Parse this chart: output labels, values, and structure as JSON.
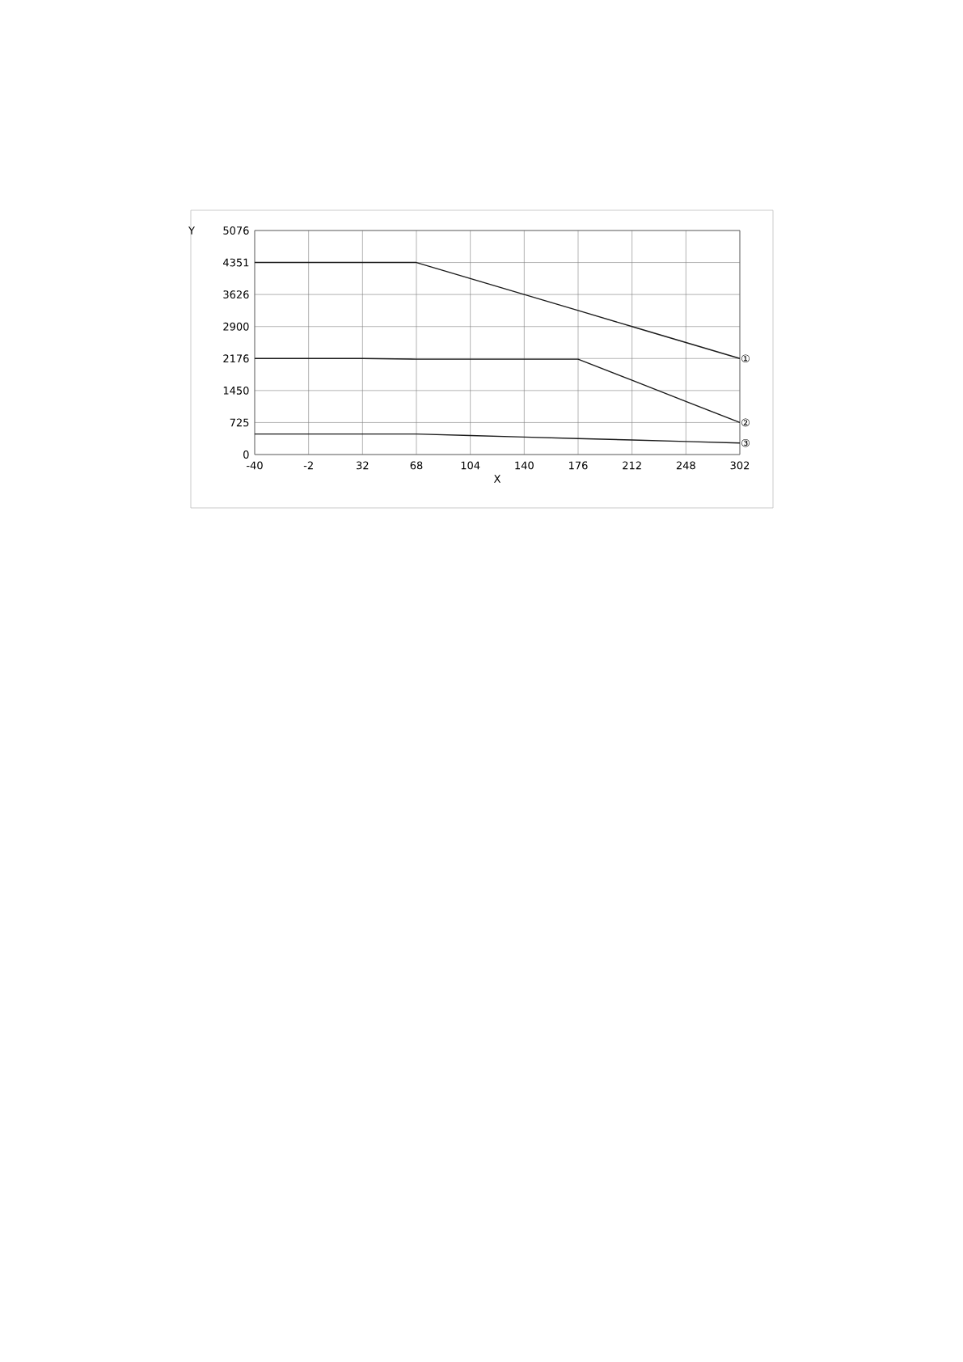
{
  "chart_data": {
    "type": "line",
    "xlabel": "X",
    "ylabel": "Y",
    "categories": [
      "-40",
      "-2",
      "32",
      "68",
      "104",
      "140",
      "176",
      "212",
      "248",
      "302"
    ],
    "series": [
      {
        "name": "①",
        "color": "#1a1a1a",
        "values": [
          4351,
          4351,
          4351,
          4351,
          3989,
          3626,
          3264,
          2900,
          2538,
          2176
        ]
      },
      {
        "name": "②",
        "color": "#1a1a1a",
        "values": [
          2176,
          2176,
          2176,
          2160,
          2160,
          2160,
          2160,
          1682,
          1203,
          725
        ]
      },
      {
        "name": "③",
        "color": "#1a1a1a",
        "values": [
          464,
          464,
          464,
          464,
          430,
          396,
          362,
          329,
          295,
          261
        ]
      }
    ],
    "ylim": [
      0,
      5076
    ],
    "yticks": [
      0,
      725,
      1450,
      2176,
      2900,
      3626,
      4351,
      5076
    ],
    "grid": true,
    "marker": "none",
    "line_style": "solid"
  }
}
